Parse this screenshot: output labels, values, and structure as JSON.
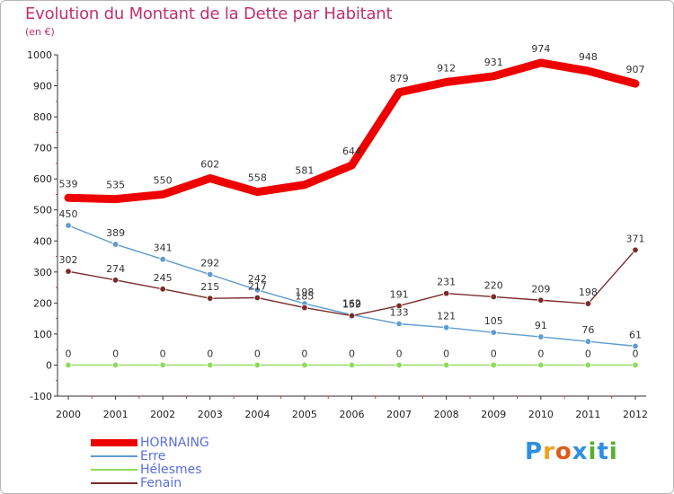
{
  "header": {
    "title": "Evolution du Montant de la Dette par Habitant",
    "subtitle": "(en €)"
  },
  "brand": {
    "letters": [
      "P",
      "r",
      "o",
      "x",
      "i",
      "t",
      "i"
    ],
    "colors": [
      "#2f8fe0",
      "#f0a020",
      "#e05a1a",
      "#2f8fe0",
      "#56b030",
      "#2f8fe0",
      "#56b030"
    ]
  },
  "colors": {
    "title": "#c03070",
    "legend_text": "#5a6ee0",
    "grid_marks": "#e03030"
  },
  "chart_data": {
    "type": "line",
    "title": "Evolution du Montant de la Dette par Habitant",
    "ylabel": "(en €)",
    "xlabel": "",
    "x": [
      "2000",
      "2001",
      "2002",
      "2003",
      "2004",
      "2005",
      "2006",
      "2007",
      "2008",
      "2009",
      "2010",
      "2011",
      "2012"
    ],
    "ylim": [
      -100,
      1000
    ],
    "yticks": [
      -100,
      0,
      100,
      200,
      300,
      400,
      500,
      600,
      700,
      800,
      900,
      1000
    ],
    "grid": false,
    "legend_position": "bottom-left",
    "series": [
      {
        "name": "HORNAING",
        "color": "#ee0000",
        "values": [
          539,
          535,
          550,
          602,
          558,
          581,
          644,
          879,
          912,
          931,
          974,
          948,
          907
        ]
      },
      {
        "name": "Erre",
        "color": "#5f9cd0",
        "values": [
          450,
          389,
          341,
          292,
          242,
          198,
          162,
          133,
          121,
          105,
          91,
          76,
          61
        ]
      },
      {
        "name": "Hélesmes",
        "color": "#8fdb5a",
        "values": [
          0,
          0,
          0,
          0,
          0,
          0,
          0,
          0,
          0,
          0,
          0,
          0,
          0
        ]
      },
      {
        "name": "Fenain",
        "color": "#7a2a2a",
        "values": [
          302,
          274,
          245,
          215,
          217,
          185,
          159,
          191,
          231,
          220,
          209,
          198,
          371
        ]
      }
    ]
  }
}
